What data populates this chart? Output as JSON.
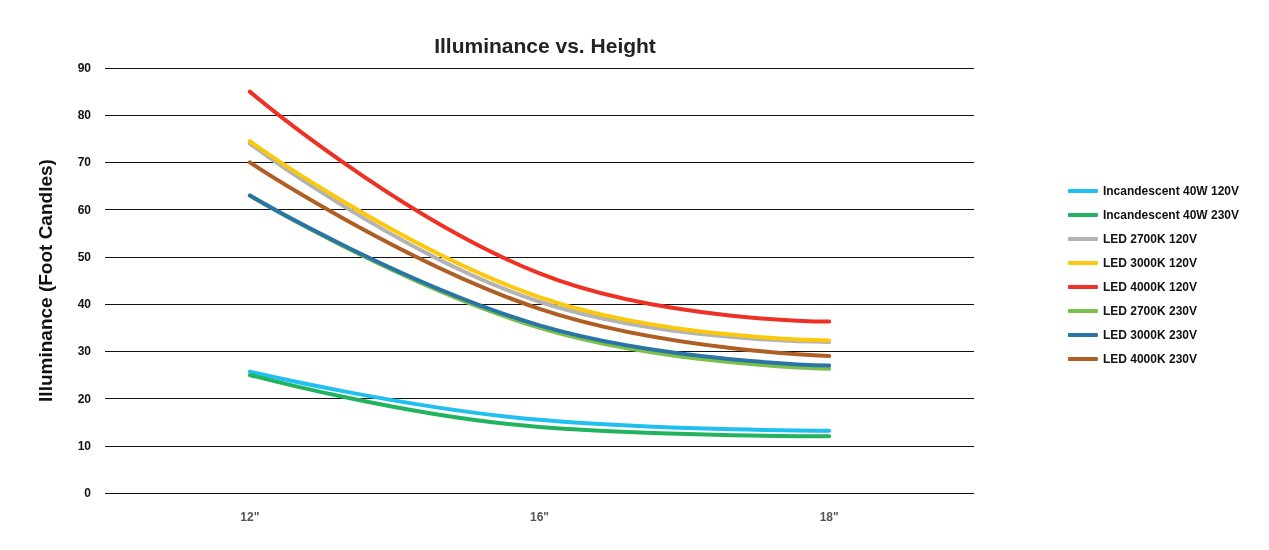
{
  "chart_data": {
    "type": "line",
    "title": "Illuminance vs. Height",
    "ylabel": "Illuminance (Foot Candles)",
    "categories": [
      "12\"",
      "16\"",
      "18\""
    ],
    "series": [
      {
        "name": "Incandescent 40W 120V",
        "color": "#1fbfef",
        "values": [
          25.7,
          15.5,
          13.2
        ]
      },
      {
        "name": "Incandescent 40W 230V",
        "color": "#22b35f",
        "values": [
          25,
          14,
          12
        ]
      },
      {
        "name": "LED 2700K 120V",
        "color": "#b3b3b3",
        "values": [
          74,
          40.5,
          32
        ]
      },
      {
        "name": "LED 3000K 120V",
        "color": "#fcc80a",
        "values": [
          74.5,
          41.5,
          32.3
        ]
      },
      {
        "name": "LED 4000K 120V",
        "color": "#ee3124",
        "values": [
          85,
          46.5,
          36.3
        ]
      },
      {
        "name": "LED 2700K 230V",
        "color": "#7cc04b",
        "values": [
          63,
          35,
          26.3
        ]
      },
      {
        "name": "LED 3000K 230V",
        "color": "#2a75a6",
        "values": [
          63,
          35.5,
          27
        ]
      },
      {
        "name": "LED 4000K 230V",
        "color": "#b05f24",
        "values": [
          70,
          39,
          29
        ]
      }
    ],
    "ylim": [
      0,
      90
    ],
    "yticks": [
      0,
      10,
      20,
      30,
      40,
      50,
      60,
      70,
      80,
      90
    ],
    "grid": "y",
    "legend": "right",
    "marker": "none",
    "line_style": "solid"
  }
}
